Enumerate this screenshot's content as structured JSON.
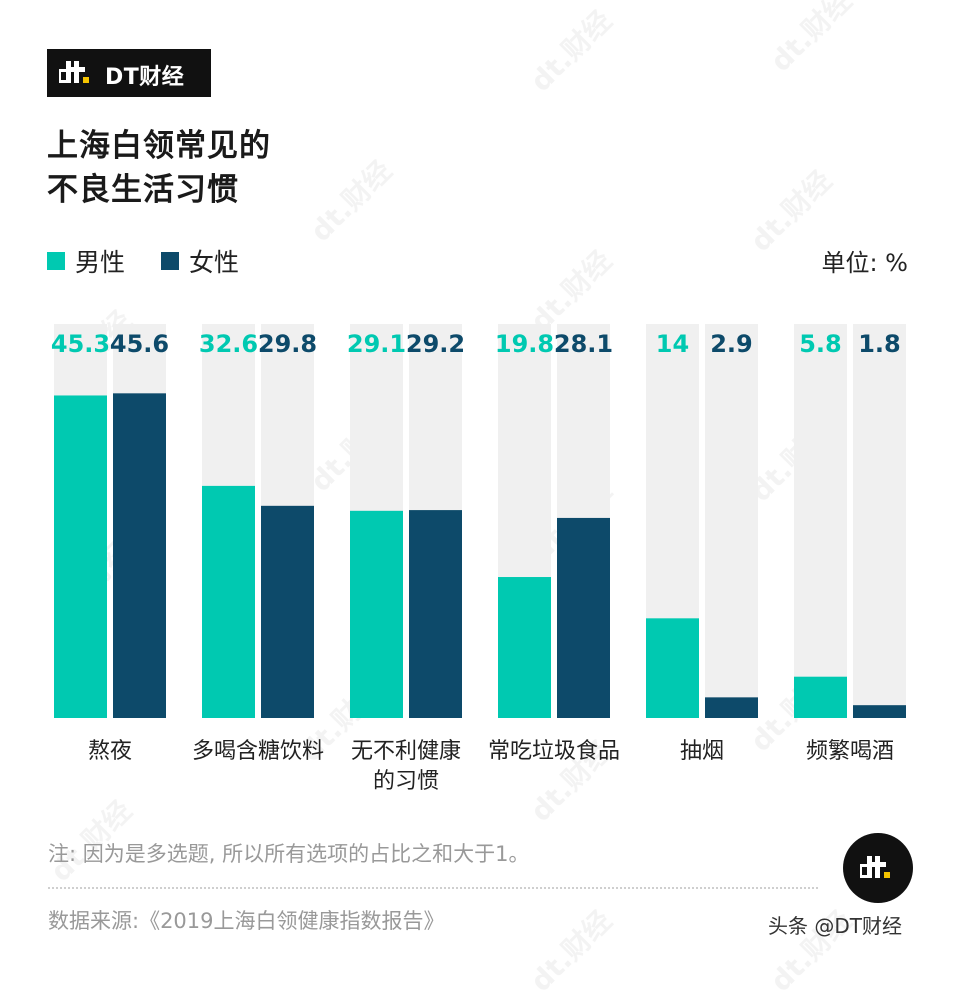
{
  "brand": {
    "name": "DT财经"
  },
  "title": {
    "line1": "上海白领常见的",
    "line2": "不良生活习惯"
  },
  "legend": [
    {
      "label": "男性",
      "color": "#00c9b1"
    },
    {
      "label": "女性",
      "color": "#0d4a6a"
    }
  ],
  "unit": "单位: %",
  "chart_data": {
    "type": "bar",
    "categories": [
      [
        "熬夜"
      ],
      [
        "多喝含糖饮料"
      ],
      [
        "无不利健康",
        "的习惯"
      ],
      [
        "常吃垃圾食品"
      ],
      [
        "抽烟"
      ],
      [
        "频繁喝酒"
      ]
    ],
    "series": [
      {
        "name": "男性",
        "values": [
          45.3,
          32.6,
          29.1,
          19.8,
          14,
          5.8
        ],
        "color": "#00c9b1"
      },
      {
        "name": "女性",
        "values": [
          45.6,
          29.8,
          29.2,
          28.1,
          2.9,
          1.8
        ],
        "color": "#0d4a6a"
      }
    ],
    "ylim": [
      0,
      50
    ],
    "track_color": "#f0f0f0",
    "grid": false,
    "legend_position": "top-left"
  },
  "note": "注: 因为是多选题, 所以所有选项的占比之和大于1。",
  "source": "数据来源:《2019上海白领健康指数报告》",
  "watermark_text": "财经",
  "footer_watermark": "头条 @DT财经"
}
